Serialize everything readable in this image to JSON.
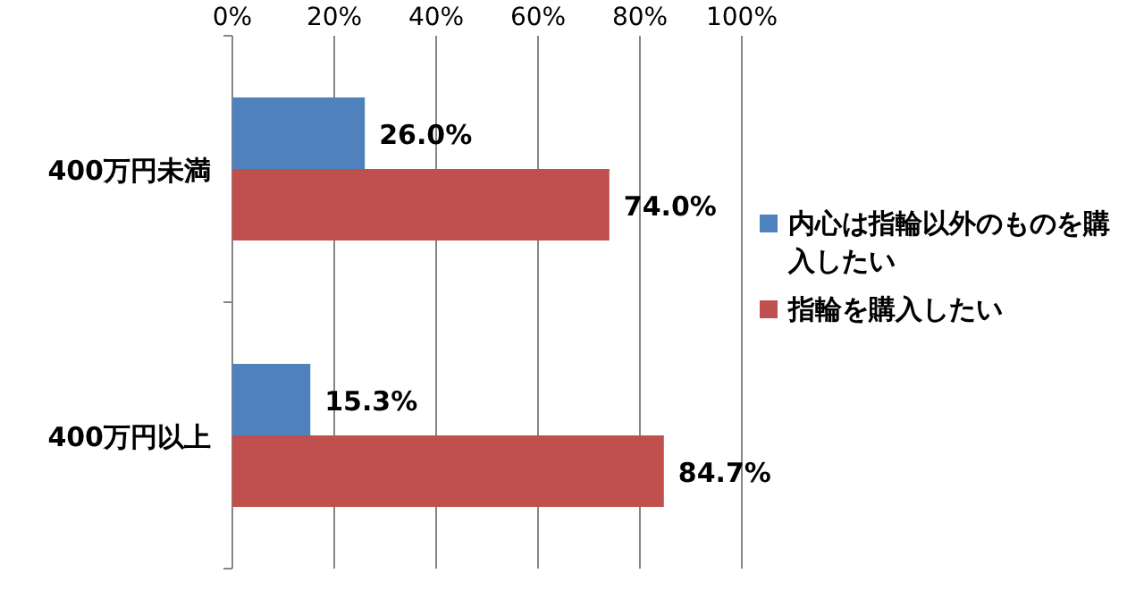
{
  "chart_data": {
    "type": "bar",
    "orientation": "horizontal",
    "categories": [
      "400万円未満",
      "400万円以上"
    ],
    "series": [
      {
        "name": "内心は指輪以外のものを購入したい",
        "color": "#4f81bd",
        "values": [
          26.0,
          15.3
        ],
        "value_labels": [
          "26.0%",
          "15.3%"
        ]
      },
      {
        "name": "指輪を購入したい",
        "color": "#c0504d",
        "values": [
          74.0,
          84.7
        ],
        "value_labels": [
          "74.0%",
          "84.7%"
        ]
      }
    ],
    "xlim": [
      0,
      100
    ],
    "xticks": [
      {
        "value": 0,
        "label": "0%"
      },
      {
        "value": 20,
        "label": "20%"
      },
      {
        "value": 40,
        "label": "40%"
      },
      {
        "value": 60,
        "label": "60%"
      },
      {
        "value": 80,
        "label": "80%"
      },
      {
        "value": 100,
        "label": "100%"
      }
    ],
    "grid": "x",
    "legend": "right"
  }
}
